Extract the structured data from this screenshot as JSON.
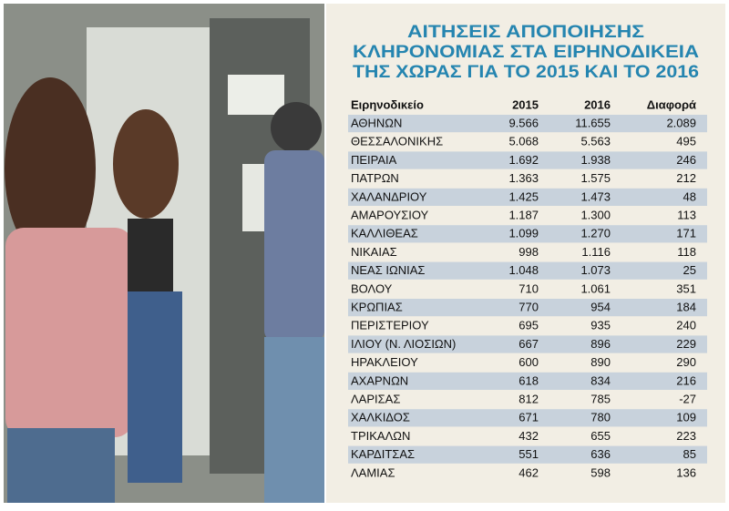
{
  "title": [
    "ΑΙΤΗΣΕΙΣ ΑΠΟΠΟΙΗΣΗΣ",
    "ΚΛΗΡΟΝΟΜΙΑΣ ΣΤΑ ΕΙΡΗΝΟΔΙΚΕΙΑ",
    "ΤΗΣ ΧΩΡΑΣ ΓΙΑ ΤΟ 2015 ΚΑΙ ΤΟ 2016"
  ],
  "table": {
    "header": [
      "Ειρηνοδικείο",
      "2015",
      "2016",
      "Διαφορά"
    ],
    "rows": [
      [
        "ΑΘΗΝΩΝ",
        "9.566",
        "11.655",
        "2.089"
      ],
      [
        "ΘΕΣΣΑΛΟΝΙΚΗΣ",
        "5.068",
        "5.563",
        "495"
      ],
      [
        "ΠΕΙΡΑΙΑ",
        "1.692",
        "1.938",
        "246"
      ],
      [
        "ΠΑΤΡΩΝ",
        "1.363",
        "1.575",
        "212"
      ],
      [
        "ΧΑΛΑΝΔΡΙΟΥ",
        "1.425",
        "1.473",
        "48"
      ],
      [
        "ΑΜΑΡΟΥΣΙΟΥ",
        "1.187",
        "1.300",
        "113"
      ],
      [
        "ΚΑΛΛΙΘΕΑΣ",
        "1.099",
        "1.270",
        "171"
      ],
      [
        "ΝΙΚΑΙΑΣ",
        "998",
        "1.116",
        "118"
      ],
      [
        "ΝΕΑΣ ΙΩΝΙΑΣ",
        "1.048",
        "1.073",
        "25"
      ],
      [
        "ΒΟΛΟΥ",
        "710",
        "1.061",
        "351"
      ],
      [
        "ΚΡΩΠΙΑΣ",
        "770",
        "954",
        "184"
      ],
      [
        "ΠΕΡΙΣΤΕΡΙΟΥ",
        "695",
        "935",
        "240"
      ],
      [
        "ΙΛΙΟΥ (Ν. ΛΙΟΣΙΩΝ)",
        "667",
        "896",
        "229"
      ],
      [
        "ΗΡΑΚΛΕΙΟΥ",
        "600",
        "890",
        "290"
      ],
      [
        "ΑΧΑΡΝΩΝ",
        "618",
        "834",
        "216"
      ],
      [
        "ΛΑΡΙΣΑΣ",
        "812",
        "785",
        "-27"
      ],
      [
        "ΧΑΛΚΙΔΟΣ",
        "671",
        "780",
        "109"
      ],
      [
        "ΤΡΙΚΑΛΩΝ",
        "432",
        "655",
        "223"
      ],
      [
        "ΚΑΡΔΙΤΣΑΣ",
        "551",
        "636",
        "85"
      ],
      [
        "ΛΑΜΙΑΣ",
        "462",
        "598",
        "136"
      ]
    ]
  }
}
